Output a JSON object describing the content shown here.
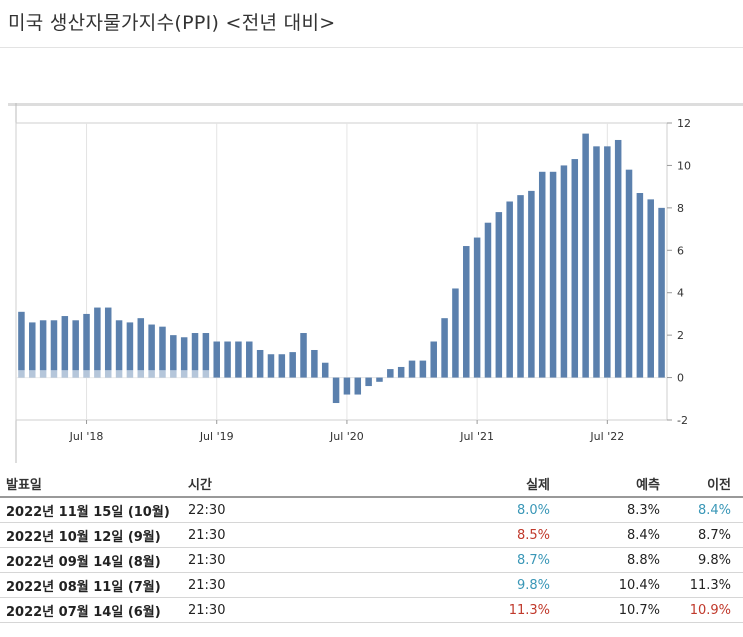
{
  "title": "미국 생산자물가지수(PPI) <전년 대비>",
  "colors": {
    "bar": "#5b80ad",
    "bar_base": "#bcc9da",
    "good": "#3a97b7",
    "bad": "#c0392b"
  },
  "chart_data": {
    "type": "bar",
    "title": "",
    "xlabel": "",
    "ylabel": "",
    "ylim": [
      -2,
      12
    ],
    "yticks": [
      12,
      10,
      8,
      6,
      4,
      2,
      0,
      -2
    ],
    "xtick_labels": [
      "Jul '18",
      "Jul '19",
      "Jul '20",
      "Jul '21",
      "Jul '22"
    ],
    "xtick_index": [
      6,
      18,
      30,
      42,
      54
    ],
    "grid": true,
    "values": [
      3.1,
      2.6,
      2.7,
      2.7,
      2.9,
      2.7,
      3.0,
      3.3,
      3.3,
      2.7,
      2.6,
      2.8,
      2.5,
      2.4,
      2.0,
      1.9,
      2.1,
      2.1,
      1.7,
      1.7,
      1.7,
      1.7,
      1.3,
      1.1,
      1.1,
      1.2,
      2.1,
      1.3,
      0.7,
      -1.2,
      -0.8,
      -0.8,
      -0.4,
      -0.2,
      0.4,
      0.5,
      0.8,
      0.8,
      1.7,
      2.8,
      4.2,
      6.2,
      6.6,
      7.3,
      7.8,
      8.3,
      8.6,
      8.8,
      9.7,
      9.7,
      10.0,
      10.3,
      11.5,
      10.9,
      10.9,
      11.2,
      9.8,
      8.7,
      8.4,
      8.0
    ]
  },
  "table": {
    "headers": {
      "date": "발표일",
      "time": "시간",
      "actual": "실제",
      "forecast": "예측",
      "previous": "이전"
    },
    "rows": [
      {
        "date": "2022년 11월 15일 (10월)",
        "time": "22:30",
        "actual": "8.0%",
        "actual_status": "good",
        "forecast": "8.3%",
        "previous": "8.4%",
        "previous_status": "good"
      },
      {
        "date": "2022년 10월 12일 (9월)",
        "time": "21:30",
        "actual": "8.5%",
        "actual_status": "bad",
        "forecast": "8.4%",
        "previous": "8.7%",
        "previous_status": ""
      },
      {
        "date": "2022년 09월 14일 (8월)",
        "time": "21:30",
        "actual": "8.7%",
        "actual_status": "good",
        "forecast": "8.8%",
        "previous": "9.8%",
        "previous_status": ""
      },
      {
        "date": "2022년 08월 11일 (7월)",
        "time": "21:30",
        "actual": "9.8%",
        "actual_status": "good",
        "forecast": "10.4%",
        "previous": "11.3%",
        "previous_status": ""
      },
      {
        "date": "2022년 07월 14일 (6월)",
        "time": "21:30",
        "actual": "11.3%",
        "actual_status": "bad",
        "forecast": "10.7%",
        "previous": "10.9%",
        "previous_status": "bad"
      }
    ]
  }
}
